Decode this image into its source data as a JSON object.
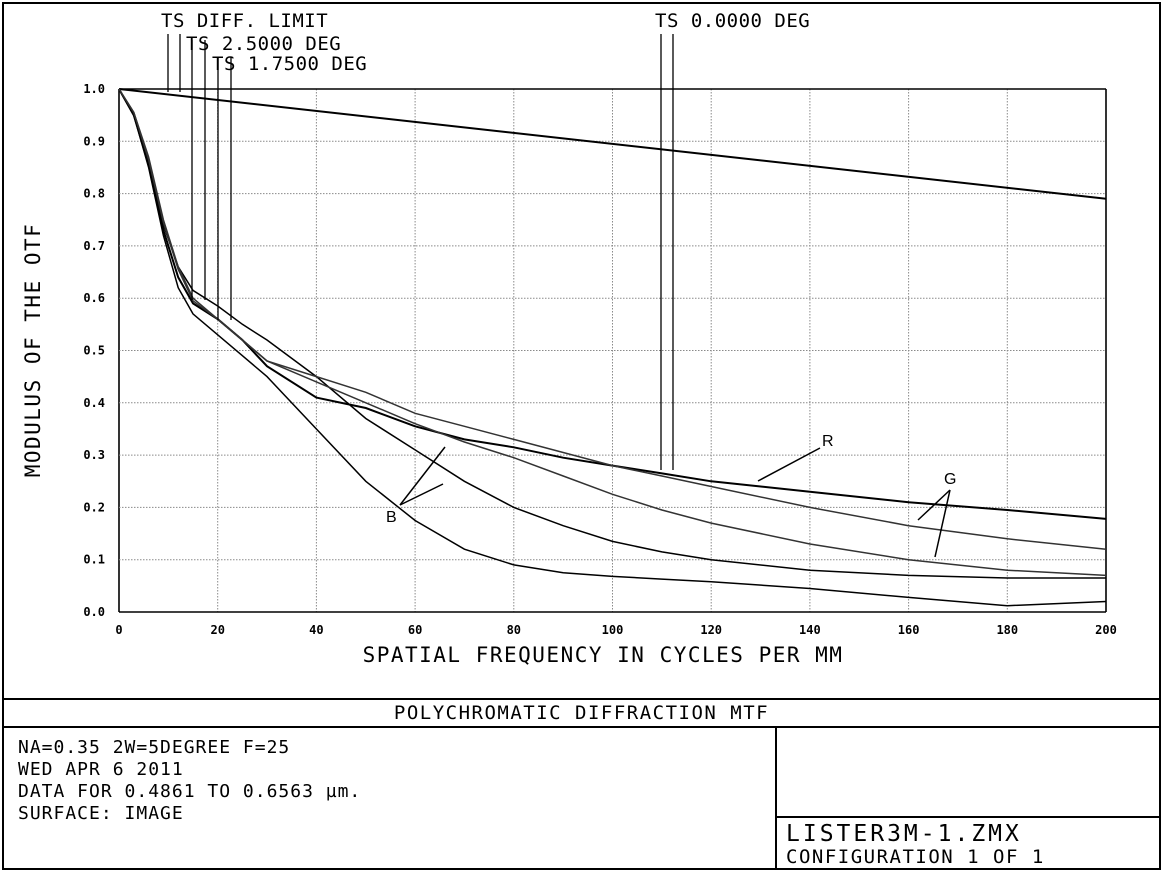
{
  "chart_data": {
    "type": "line",
    "title": "POLYCHROMATIC DIFFRACTION MTF",
    "xlabel": "SPATIAL FREQUENCY IN CYCLES PER MM",
    "ylabel": "MODULUS OF THE OTF",
    "xlim": [
      0,
      200
    ],
    "ylim": [
      0,
      1
    ],
    "x_ticks": [
      "0",
      "20",
      "40",
      "60",
      "80",
      "100",
      "120",
      "140",
      "160",
      "180",
      "200"
    ],
    "y_ticks": [
      "0.0",
      "0.1",
      "0.2",
      "0.3",
      "0.4",
      "0.5",
      "0.6",
      "0.7",
      "0.8",
      "0.9",
      "1.0"
    ],
    "grid": true,
    "series": [
      {
        "name": "TS DIFF. LIMIT",
        "x": [
          0,
          200
        ],
        "y": [
          1.0,
          0.79
        ]
      },
      {
        "x": [
          0,
          3,
          6,
          9,
          12,
          15,
          20,
          25,
          30,
          40,
          50,
          60,
          70,
          80,
          90,
          100,
          110,
          120,
          140,
          160,
          180,
          200
        ],
        "y": [
          1.0,
          0.95,
          0.86,
          0.74,
          0.66,
          0.615,
          0.585,
          0.55,
          0.52,
          0.45,
          0.37,
          0.31,
          0.25,
          0.2,
          0.165,
          0.135,
          0.115,
          0.1,
          0.08,
          0.07,
          0.065,
          0.065
        ]
      },
      {
        "x": [
          0,
          3,
          6,
          9,
          12,
          15,
          20,
          25,
          30,
          40,
          50,
          60,
          70,
          80,
          90,
          100,
          110,
          120,
          140,
          160,
          180,
          200
        ],
        "y": [
          1.0,
          0.95,
          0.85,
          0.72,
          0.62,
          0.57,
          0.53,
          0.49,
          0.45,
          0.35,
          0.25,
          0.175,
          0.12,
          0.09,
          0.075,
          0.068,
          0.063,
          0.058,
          0.045,
          0.028,
          0.012,
          0.02
        ]
      },
      {
        "x": [
          0,
          3,
          6,
          9,
          12,
          15,
          20,
          25,
          30,
          40,
          50,
          60,
          70,
          80,
          90,
          100,
          110,
          120,
          140,
          160,
          180,
          200
        ],
        "y": [
          1.0,
          0.95,
          0.855,
          0.73,
          0.64,
          0.59,
          0.56,
          0.52,
          0.47,
          0.41,
          0.39,
          0.355,
          0.33,
          0.315,
          0.295,
          0.28,
          0.265,
          0.25,
          0.23,
          0.21,
          0.195,
          0.178
        ]
      },
      {
        "x": [
          0,
          3,
          6,
          9,
          12,
          15,
          20,
          25,
          30,
          40,
          50,
          60,
          70,
          80,
          90,
          100,
          110,
          120,
          140,
          160,
          180,
          200
        ],
        "y": [
          1.0,
          0.955,
          0.87,
          0.75,
          0.66,
          0.6,
          0.56,
          0.52,
          0.48,
          0.45,
          0.42,
          0.38,
          0.355,
          0.33,
          0.305,
          0.28,
          0.26,
          0.24,
          0.2,
          0.165,
          0.14,
          0.12
        ]
      },
      {
        "x": [
          0,
          3,
          6,
          9,
          12,
          15,
          20,
          25,
          30,
          40,
          50,
          60,
          70,
          80,
          90,
          100,
          110,
          120,
          140,
          160,
          180,
          200
        ],
        "y": [
          1.0,
          0.955,
          0.865,
          0.745,
          0.655,
          0.595,
          0.56,
          0.52,
          0.48,
          0.44,
          0.4,
          0.36,
          0.325,
          0.295,
          0.26,
          0.225,
          0.195,
          0.17,
          0.13,
          0.1,
          0.08,
          0.07
        ]
      }
    ],
    "field_labels": [
      "TS DIFF. LIMIT",
      "TS 2.5000 DEG",
      "TS 1.7500 DEG",
      "TS 0.0000 DEG"
    ],
    "annotations": [
      "R",
      "G",
      "B"
    ]
  },
  "footer": {
    "info_lines": [
      "NA=0.35 2W=5DEGREE F=25",
      "WED APR 6 2011",
      "DATA FOR 0.4861 TO 0.6563 µm.",
      "SURFACE: IMAGE"
    ],
    "file_name": "LISTER3M-1.ZMX",
    "configuration": "CONFIGURATION 1 OF 1"
  }
}
